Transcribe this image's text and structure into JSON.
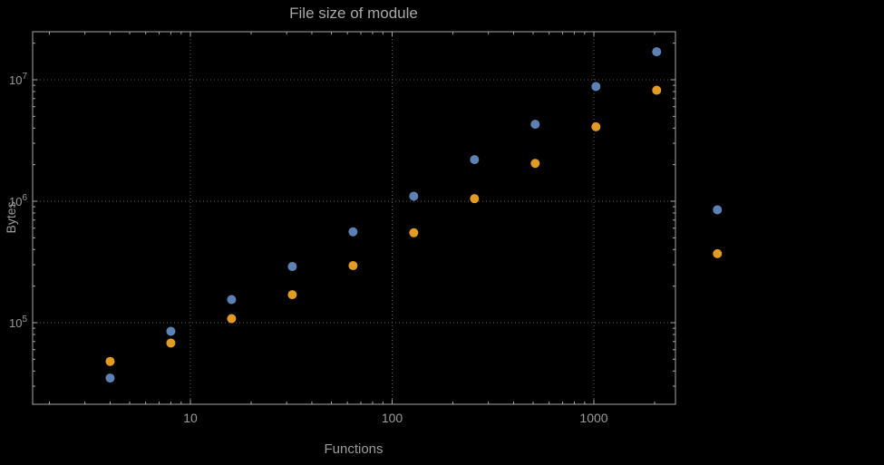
{
  "colors": {
    "background": "#000000",
    "frame": "#a6a6a6",
    "grid": "#5f5f5f",
    "text": "#9a9a9a",
    "series1": "#5e81b5",
    "series2": "#e19c24"
  },
  "chart_data": {
    "type": "scatter",
    "title": "File size of module",
    "xlabel": "Functions",
    "ylabel": "Bytes",
    "x_scale": "log",
    "y_scale": "log",
    "grid": "dotted",
    "legend": "none",
    "x_range": [
      1.7,
      2540
    ],
    "y_range": [
      21000,
      25000000
    ],
    "x_ticks": [
      {
        "value": 10,
        "label": "10"
      },
      {
        "value": 100,
        "label": "100"
      },
      {
        "value": 1000,
        "label": "1000"
      }
    ],
    "y_ticks": [
      {
        "value": 100000,
        "base": "10",
        "exp": "5"
      },
      {
        "value": 1000000,
        "base": "10",
        "exp": "6"
      },
      {
        "value": 10000000,
        "base": "10",
        "exp": "7"
      }
    ],
    "x": [
      4,
      8,
      16,
      32,
      64,
      128,
      256,
      512,
      1024,
      2048,
      4096
    ],
    "series": [
      {
        "name": "blue",
        "color": "#5e81b5",
        "values": [
          35000,
          85000,
          155000,
          290000,
          560000,
          1100000,
          2200000,
          4300000,
          8800000,
          17000000,
          850000
        ]
      },
      {
        "name": "orange",
        "color": "#e19c24",
        "values": [
          48000,
          68000,
          108000,
          170000,
          295000,
          550000,
          1050000,
          2050000,
          4100000,
          8200000,
          370000
        ]
      }
    ]
  }
}
